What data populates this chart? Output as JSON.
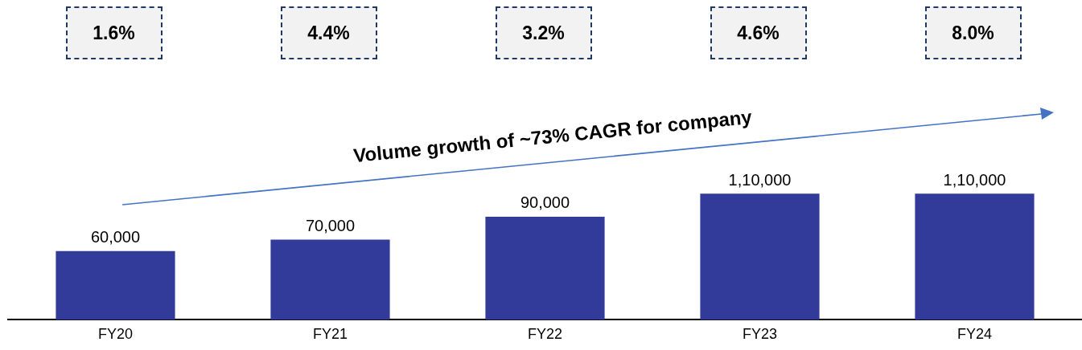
{
  "chart_data": {
    "type": "bar",
    "categories": [
      "FY20",
      "FY21",
      "FY22",
      "FY23",
      "FY24"
    ],
    "values": [
      60000,
      70000,
      90000,
      110000,
      110000
    ],
    "color": "#323a9a",
    "value_labels": [
      "60,000",
      "70,000",
      "90,000",
      "1,10,000",
      "1,10,000"
    ],
    "annotations": [
      "1.6%",
      "4.4%",
      "3.2%",
      "4.6%",
      "8.0%",
      "Volume growth of ~73% CAGR for company"
    ],
    "grid": false,
    "legend": false
  }
}
